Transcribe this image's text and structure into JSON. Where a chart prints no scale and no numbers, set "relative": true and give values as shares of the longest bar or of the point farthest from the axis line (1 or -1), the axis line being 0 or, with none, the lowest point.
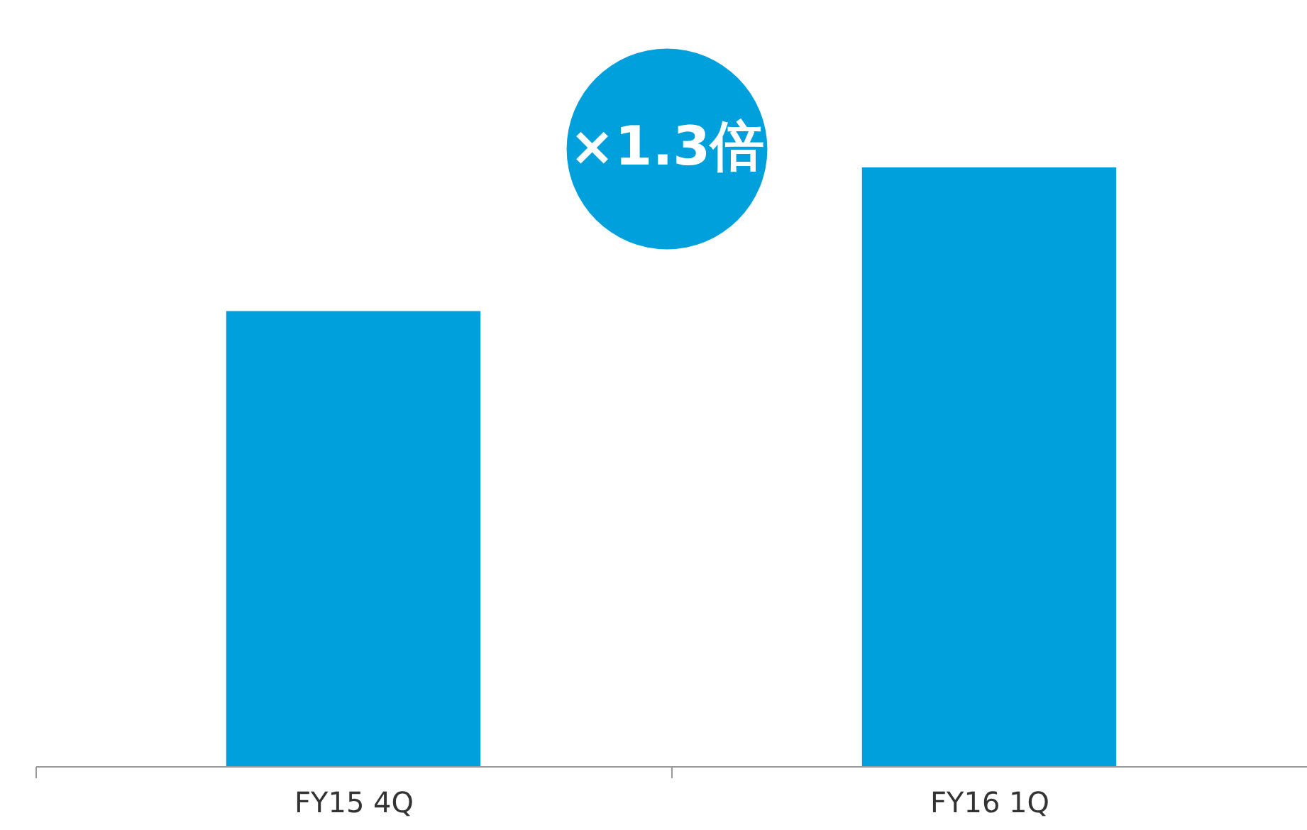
{
  "chart_data": {
    "type": "bar",
    "relative": true,
    "categories": [
      "FY15 4Q",
      "FY16 1Q"
    ],
    "values": [
      0.76,
      1
    ],
    "color": "#00a0dc",
    "grid": false,
    "annotations": [
      "×1.3倍"
    ]
  }
}
